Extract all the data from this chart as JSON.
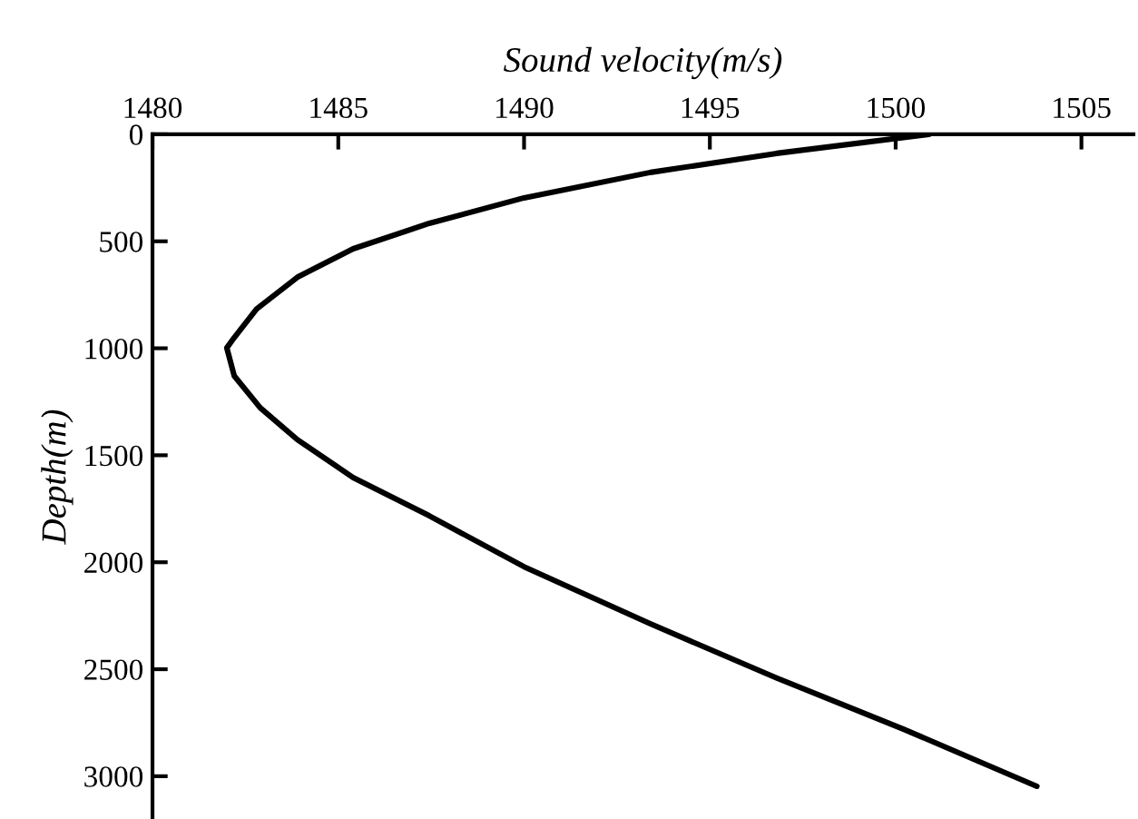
{
  "chart_data": {
    "type": "line",
    "xlabel": "Sound velocity(m/s)",
    "ylabel": "Depth(m)",
    "xlim": [
      1480,
      1506.4
    ],
    "xticks": [
      1480,
      1485,
      1490,
      1495,
      1500,
      1505
    ],
    "ylim": [
      3200,
      0
    ],
    "yticks": [
      0,
      500,
      1000,
      1500,
      2000,
      2500,
      3000
    ],
    "grid": false,
    "marker": "none",
    "line_style": "solid",
    "series": [
      {
        "color": "#000000",
        "x": [
          1500.9,
          1496.8,
          1493.4,
          1490.0,
          1487.45,
          1485.4,
          1483.9,
          1482.8,
          1482.2,
          1482.0,
          1482.2,
          1482.9,
          1483.9,
          1485.4,
          1487.45,
          1490.0,
          1493.4,
          1496.8,
          1500.2,
          1503.8
        ],
        "values": [
          0,
          89,
          178,
          297,
          416,
          535,
          668,
          817,
          950,
          998,
          1129,
          1278,
          1427,
          1604,
          1783,
          2021,
          2288,
          2541,
          2779,
          3047
        ]
      }
    ]
  }
}
